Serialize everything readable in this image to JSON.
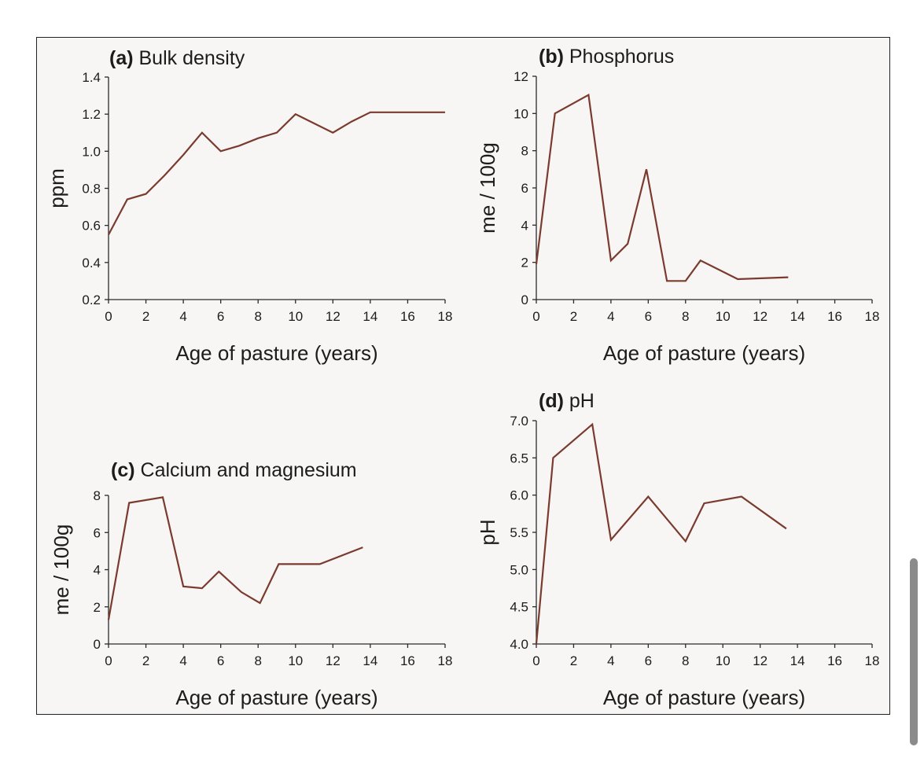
{
  "colors": {
    "line": "#7a3b2e",
    "axis": "#2a2a2a",
    "background": "#f7f6f5"
  },
  "chart_data": [
    {
      "type": "line",
      "panel_letter": "(a)",
      "title": "Bulk density",
      "xlabel": "Age of pasture (years)",
      "ylabel": "ppm",
      "xlim": [
        0,
        18
      ],
      "ylim": [
        0.2,
        1.4
      ],
      "xticks": [
        0,
        2,
        4,
        6,
        8,
        10,
        12,
        14,
        16,
        18
      ],
      "yticks": [
        0.2,
        0.4,
        0.6,
        0.8,
        1.0,
        1.2,
        1.4
      ],
      "ytick_labels": [
        "0.2",
        "0.4",
        "0.6",
        "0.8",
        "1.0",
        "1.2",
        "1.4"
      ],
      "series": [
        {
          "name": "Bulk density",
          "x": [
            0,
            1,
            2,
            3,
            4,
            5,
            6,
            7,
            8,
            9,
            10,
            11,
            12,
            13,
            14,
            18
          ],
          "y": [
            0.55,
            0.74,
            0.77,
            0.87,
            0.98,
            1.1,
            1.0,
            1.03,
            1.07,
            1.1,
            1.2,
            1.15,
            1.1,
            1.16,
            1.21,
            1.21
          ]
        }
      ]
    },
    {
      "type": "line",
      "panel_letter": "(b)",
      "title": "Phosphorus",
      "xlabel": "Age of pasture (years)",
      "ylabel": "me / 100g",
      "xlim": [
        0,
        18
      ],
      "ylim": [
        0,
        12
      ],
      "xticks": [
        0,
        2,
        4,
        6,
        8,
        10,
        12,
        14,
        16,
        18
      ],
      "yticks": [
        0,
        2,
        4,
        6,
        8,
        10,
        12
      ],
      "ytick_labels": [
        "0",
        "2",
        "4",
        "6",
        "8",
        "10",
        "12"
      ],
      "series": [
        {
          "name": "Phosphorus",
          "x": [
            0,
            1,
            2.8,
            4,
            4.9,
            5.9,
            7,
            8,
            8.8,
            10.8,
            13.5
          ],
          "y": [
            1.9,
            10,
            11,
            2.1,
            3.0,
            7.0,
            1.0,
            1.0,
            2.1,
            1.1,
            1.2
          ]
        }
      ]
    },
    {
      "type": "line",
      "panel_letter": "(c)",
      "title": "Calcium and magnesium",
      "xlabel": "Age of pasture (years)",
      "ylabel": "me / 100g",
      "xlim": [
        0,
        18
      ],
      "ylim": [
        0,
        8
      ],
      "xticks": [
        0,
        2,
        4,
        6,
        8,
        10,
        12,
        14,
        16,
        18
      ],
      "yticks": [
        0,
        2,
        4,
        6,
        8
      ],
      "ytick_labels": [
        "0",
        "2",
        "4",
        "6",
        "8"
      ],
      "series": [
        {
          "name": "Calcium and magnesium",
          "x": [
            0,
            1.1,
            2.9,
            4,
            5,
            5.9,
            7.1,
            8.1,
            9.1,
            10.2,
            11.3,
            13.6
          ],
          "y": [
            1.3,
            7.6,
            7.9,
            3.1,
            3.0,
            3.9,
            2.8,
            2.2,
            4.3,
            4.3,
            4.3,
            5.2
          ]
        }
      ]
    },
    {
      "type": "line",
      "panel_letter": "(d)",
      "title": "pH",
      "xlabel": "Age of pasture (years)",
      "ylabel": "pH",
      "xlim": [
        0,
        18
      ],
      "ylim": [
        4.0,
        7.0
      ],
      "xticks": [
        0,
        2,
        4,
        6,
        8,
        10,
        12,
        14,
        16,
        18
      ],
      "yticks": [
        4.0,
        4.5,
        5.0,
        5.5,
        6.0,
        6.5,
        7.0
      ],
      "ytick_labels": [
        "4.0",
        "4.5",
        "5.0",
        "5.5",
        "6.0",
        "6.5",
        "7.0"
      ],
      "series": [
        {
          "name": "pH",
          "x": [
            0,
            0.9,
            3,
            4,
            6,
            8,
            9,
            11,
            13.4
          ],
          "y": [
            4.0,
            6.5,
            6.95,
            5.4,
            5.98,
            5.38,
            5.89,
            5.98,
            5.55
          ]
        }
      ]
    }
  ]
}
